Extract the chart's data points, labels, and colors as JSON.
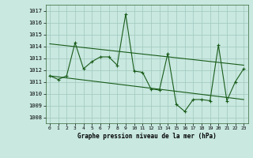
{
  "title": "Graphe pression niveau de la mer (hPa)",
  "xlim": [
    -0.5,
    23.5
  ],
  "ylim": [
    1007.5,
    1017.5
  ],
  "yticks": [
    1008,
    1009,
    1010,
    1011,
    1012,
    1013,
    1014,
    1015,
    1016,
    1017
  ],
  "xticks": [
    0,
    1,
    2,
    3,
    4,
    5,
    6,
    7,
    8,
    9,
    10,
    11,
    12,
    13,
    14,
    15,
    16,
    17,
    18,
    19,
    20,
    21,
    22,
    23
  ],
  "bg_color": "#c8e8e0",
  "grid_color": "#a0c8bc",
  "line_color": "#1a5c1a",
  "line1_x": [
    0,
    1,
    2,
    3,
    4,
    5,
    6,
    7,
    8,
    9,
    10,
    11,
    12,
    13,
    14,
    15,
    16,
    17,
    18,
    19,
    20,
    21,
    22,
    23
  ],
  "line1_y": [
    1011.5,
    1011.2,
    1011.5,
    1014.3,
    1012.1,
    1012.7,
    1013.1,
    1013.1,
    1012.4,
    1016.7,
    1011.9,
    1011.8,
    1010.4,
    1010.3,
    1013.4,
    1009.1,
    1008.5,
    1009.5,
    1009.5,
    1009.4,
    1014.1,
    1009.4,
    1011.0,
    1012.1
  ],
  "line2_x": [
    0,
    23
  ],
  "line2_y": [
    1014.2,
    1012.4
  ],
  "line3_x": [
    0,
    23
  ],
  "line3_y": [
    1011.5,
    1009.5
  ]
}
